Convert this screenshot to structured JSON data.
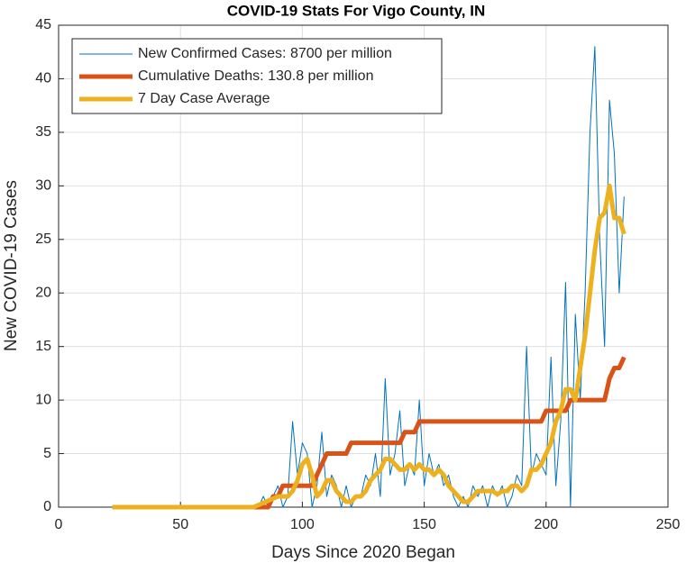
{
  "chart_data": {
    "type": "line",
    "title": "COVID-19 Stats For Vigo County, IN",
    "xlabel": "Days Since 2020 Began",
    "ylabel": "New COVID-19 Cases",
    "x": [
      22,
      24,
      26,
      28,
      30,
      32,
      34,
      36,
      38,
      40,
      42,
      44,
      46,
      48,
      50,
      52,
      54,
      56,
      58,
      60,
      62,
      64,
      66,
      68,
      70,
      72,
      74,
      76,
      78,
      80,
      82,
      84,
      86,
      88,
      90,
      92,
      94,
      96,
      98,
      100,
      102,
      104,
      106,
      108,
      110,
      112,
      114,
      116,
      118,
      120,
      122,
      124,
      126,
      128,
      130,
      132,
      134,
      136,
      138,
      140,
      142,
      144,
      146,
      148,
      150,
      152,
      154,
      156,
      158,
      160,
      162,
      164,
      166,
      168,
      170,
      172,
      174,
      176,
      178,
      180,
      182,
      184,
      186,
      188,
      190,
      192,
      194,
      196,
      198,
      200,
      202,
      204,
      206,
      208,
      210,
      212,
      214,
      216,
      218,
      220,
      222,
      224,
      226,
      228,
      230,
      232
    ],
    "series": [
      {
        "name": "New Confirmed Cases: 8700 per million",
        "color": "#0072BD",
        "width": 1,
        "values": [
          0,
          0,
          0,
          0,
          0,
          0,
          0,
          0,
          0,
          0,
          0,
          0,
          0,
          0,
          0,
          0,
          0,
          0,
          0,
          0,
          0,
          0,
          0,
          0,
          0,
          0,
          0,
          0,
          0,
          0,
          0,
          1,
          0,
          1,
          2,
          0,
          1,
          8,
          3,
          6,
          5,
          0,
          2,
          7,
          1,
          3,
          2,
          0,
          2,
          0,
          1,
          1,
          3,
          2,
          5,
          1,
          12,
          3,
          5,
          9,
          2,
          4,
          3,
          10,
          2,
          5,
          3,
          4,
          2,
          3,
          1,
          0,
          1,
          0,
          2,
          1,
          2,
          0,
          2,
          1,
          2,
          0,
          1,
          3,
          2,
          15,
          3,
          5,
          4,
          3,
          14,
          2,
          8,
          21,
          0,
          18,
          10,
          20,
          35,
          43,
          25,
          15,
          38,
          33,
          20,
          29
        ]
      },
      {
        "name": "Cumulative Deaths: 130.8 per million",
        "color": "#D95319",
        "width": 5,
        "values": [
          0,
          0,
          0,
          0,
          0,
          0,
          0,
          0,
          0,
          0,
          0,
          0,
          0,
          0,
          0,
          0,
          0,
          0,
          0,
          0,
          0,
          0,
          0,
          0,
          0,
          0,
          0,
          0,
          0,
          0,
          0,
          0,
          0,
          1,
          1,
          2,
          2,
          2,
          2,
          2,
          2,
          2,
          3,
          4,
          5,
          5,
          5,
          5,
          5,
          6,
          6,
          6,
          6,
          6,
          6,
          6,
          6,
          6,
          6,
          6,
          7,
          7,
          7,
          8,
          8,
          8,
          8,
          8,
          8,
          8,
          8,
          8,
          8,
          8,
          8,
          8,
          8,
          8,
          8,
          8,
          8,
          8,
          8,
          8,
          8,
          8,
          8,
          8,
          8,
          9,
          9,
          9,
          9,
          9,
          10,
          10,
          10,
          10,
          10,
          10,
          10,
          10,
          12,
          13,
          13,
          14
        ]
      },
      {
        "name": "7 Day Case Average",
        "color": "#EDB120",
        "width": 5,
        "values": [
          0,
          0,
          0,
          0,
          0,
          0,
          0,
          0,
          0,
          0,
          0,
          0,
          0,
          0,
          0,
          0,
          0,
          0,
          0,
          0,
          0,
          0,
          0,
          0,
          0,
          0,
          0,
          0,
          0,
          0,
          0.2,
          0.4,
          0.6,
          0.8,
          1,
          1,
          1,
          1.5,
          2.5,
          4,
          4.5,
          3,
          1,
          1.5,
          2.5,
          2.5,
          1.5,
          1,
          0.5,
          0.5,
          1,
          1,
          1.5,
          2.5,
          3,
          3.5,
          4.5,
          4.5,
          4,
          3.5,
          3.5,
          4,
          3.5,
          4,
          3.5,
          3.5,
          3,
          3.5,
          3,
          2,
          1.5,
          1,
          0.5,
          0.5,
          1,
          1.5,
          1.5,
          1.5,
          1.5,
          1.2,
          1.5,
          1.5,
          2,
          2,
          1.5,
          2,
          3.5,
          3.5,
          4,
          5,
          6,
          8,
          9,
          11,
          11,
          10,
          13,
          16,
          20,
          24,
          27,
          27.5,
          30,
          27,
          27,
          25.5
        ]
      }
    ],
    "xlim": [
      0,
      250
    ],
    "xticks": [
      0,
      50,
      100,
      150,
      200,
      250
    ],
    "ylim": [
      0,
      45
    ],
    "yticks": [
      0,
      5,
      10,
      15,
      20,
      25,
      30,
      35,
      40,
      45
    ],
    "grid": true,
    "legend": "upper-left"
  }
}
